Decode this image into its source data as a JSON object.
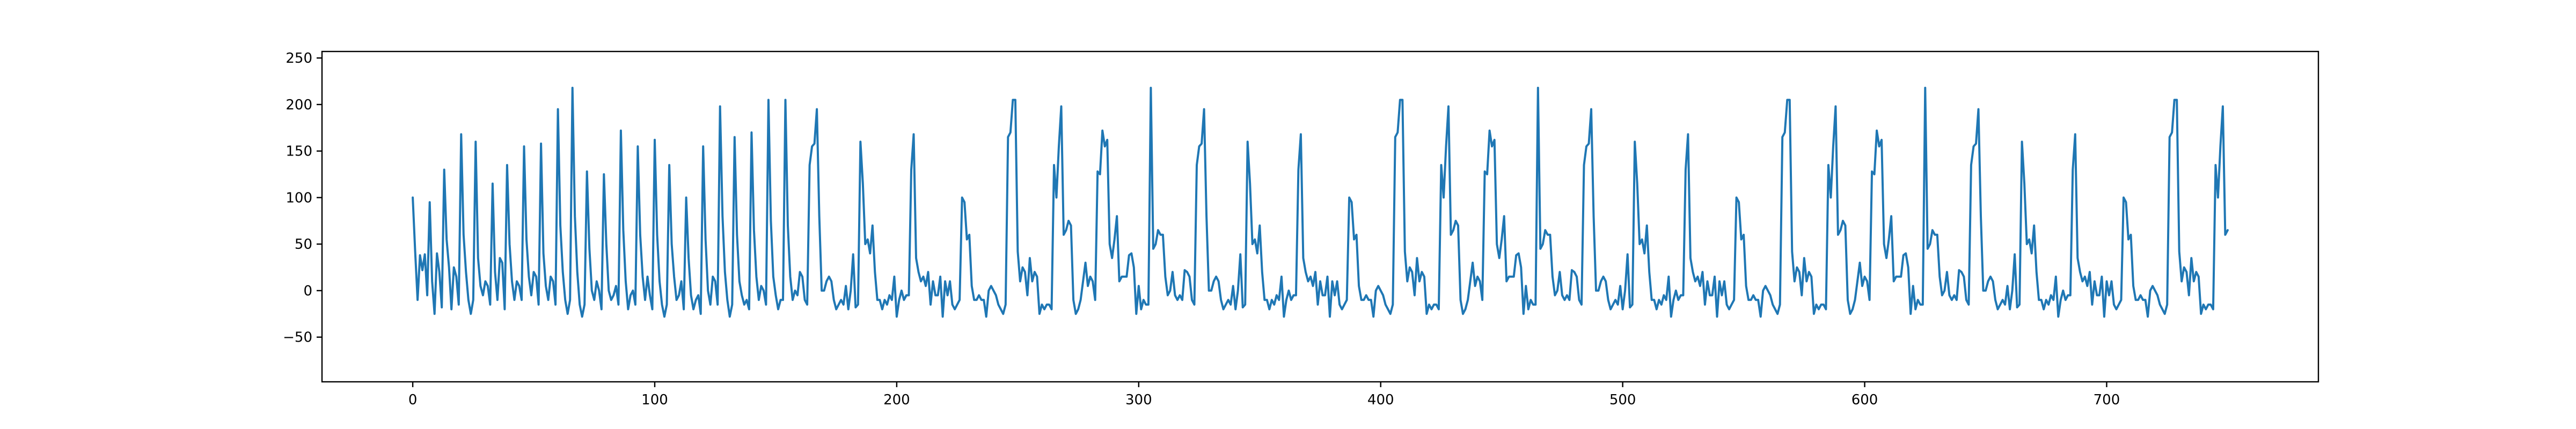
{
  "chart_data": {
    "type": "line",
    "title": "",
    "xlabel": "",
    "ylabel": "",
    "xlim": [
      -37.5,
      787.5
    ],
    "ylim": [
      -98,
      257
    ],
    "x_ticks": [
      0,
      100,
      200,
      300,
      400,
      500,
      600,
      700
    ],
    "y_ticks": [
      -50,
      0,
      50,
      100,
      150,
      200,
      250
    ],
    "x_tick_labels": [
      "0",
      "100",
      "200",
      "300",
      "400",
      "500",
      "600",
      "700"
    ],
    "y_tick_labels": [
      "−50",
      "0",
      "50",
      "100",
      "150",
      "200",
      "250"
    ],
    "grid": false,
    "legend": "none",
    "line_color": "#1f77b4",
    "series": [
      {
        "x_start": 0,
        "x_step": 1,
        "values": [
          100,
          42,
          -10,
          38,
          22,
          39,
          -5,
          95,
          10,
          -25,
          40,
          20,
          -18,
          130,
          55,
          25,
          -20,
          25,
          15,
          -15,
          168,
          60,
          20,
          -10,
          -25,
          -10,
          160,
          35,
          5,
          -5,
          10,
          5,
          -15,
          115,
          20,
          -10,
          35,
          30,
          -20,
          135,
          50,
          10,
          -10,
          10,
          5,
          -10,
          155,
          55,
          15,
          -5,
          20,
          15,
          -15,
          158,
          40,
          5,
          -10,
          15,
          10,
          -15,
          195,
          70,
          20,
          -10,
          -25,
          -10,
          218,
          80,
          20,
          -15,
          -28,
          -15,
          128,
          45,
          0,
          -10,
          10,
          0,
          -20,
          125,
          50,
          0,
          -10,
          -5,
          5,
          -15,
          172,
          65,
          10,
          -20,
          -5,
          0,
          -15,
          155,
          60,
          15,
          -10,
          15,
          -5,
          -20,
          162,
          60,
          10,
          -15,
          -28,
          -15,
          135,
          50,
          15,
          -10,
          -5,
          10,
          -20,
          100,
          35,
          -5,
          -20,
          -10,
          -5,
          -25,
          155,
          55,
          0,
          -15,
          15,
          10,
          -15,
          198,
          80,
          20,
          -10,
          -28,
          -15,
          165,
          60,
          10,
          -5,
          -15,
          -10,
          -20,
          170,
          65,
          15,
          -10,
          5,
          0,
          -15,
          205,
          75,
          15,
          -5,
          -20,
          -10,
          -10,
          205,
          70,
          15,
          -10,
          0,
          -5
        ],
        "series_note_values_sampled": false
      }
    ]
  }
}
